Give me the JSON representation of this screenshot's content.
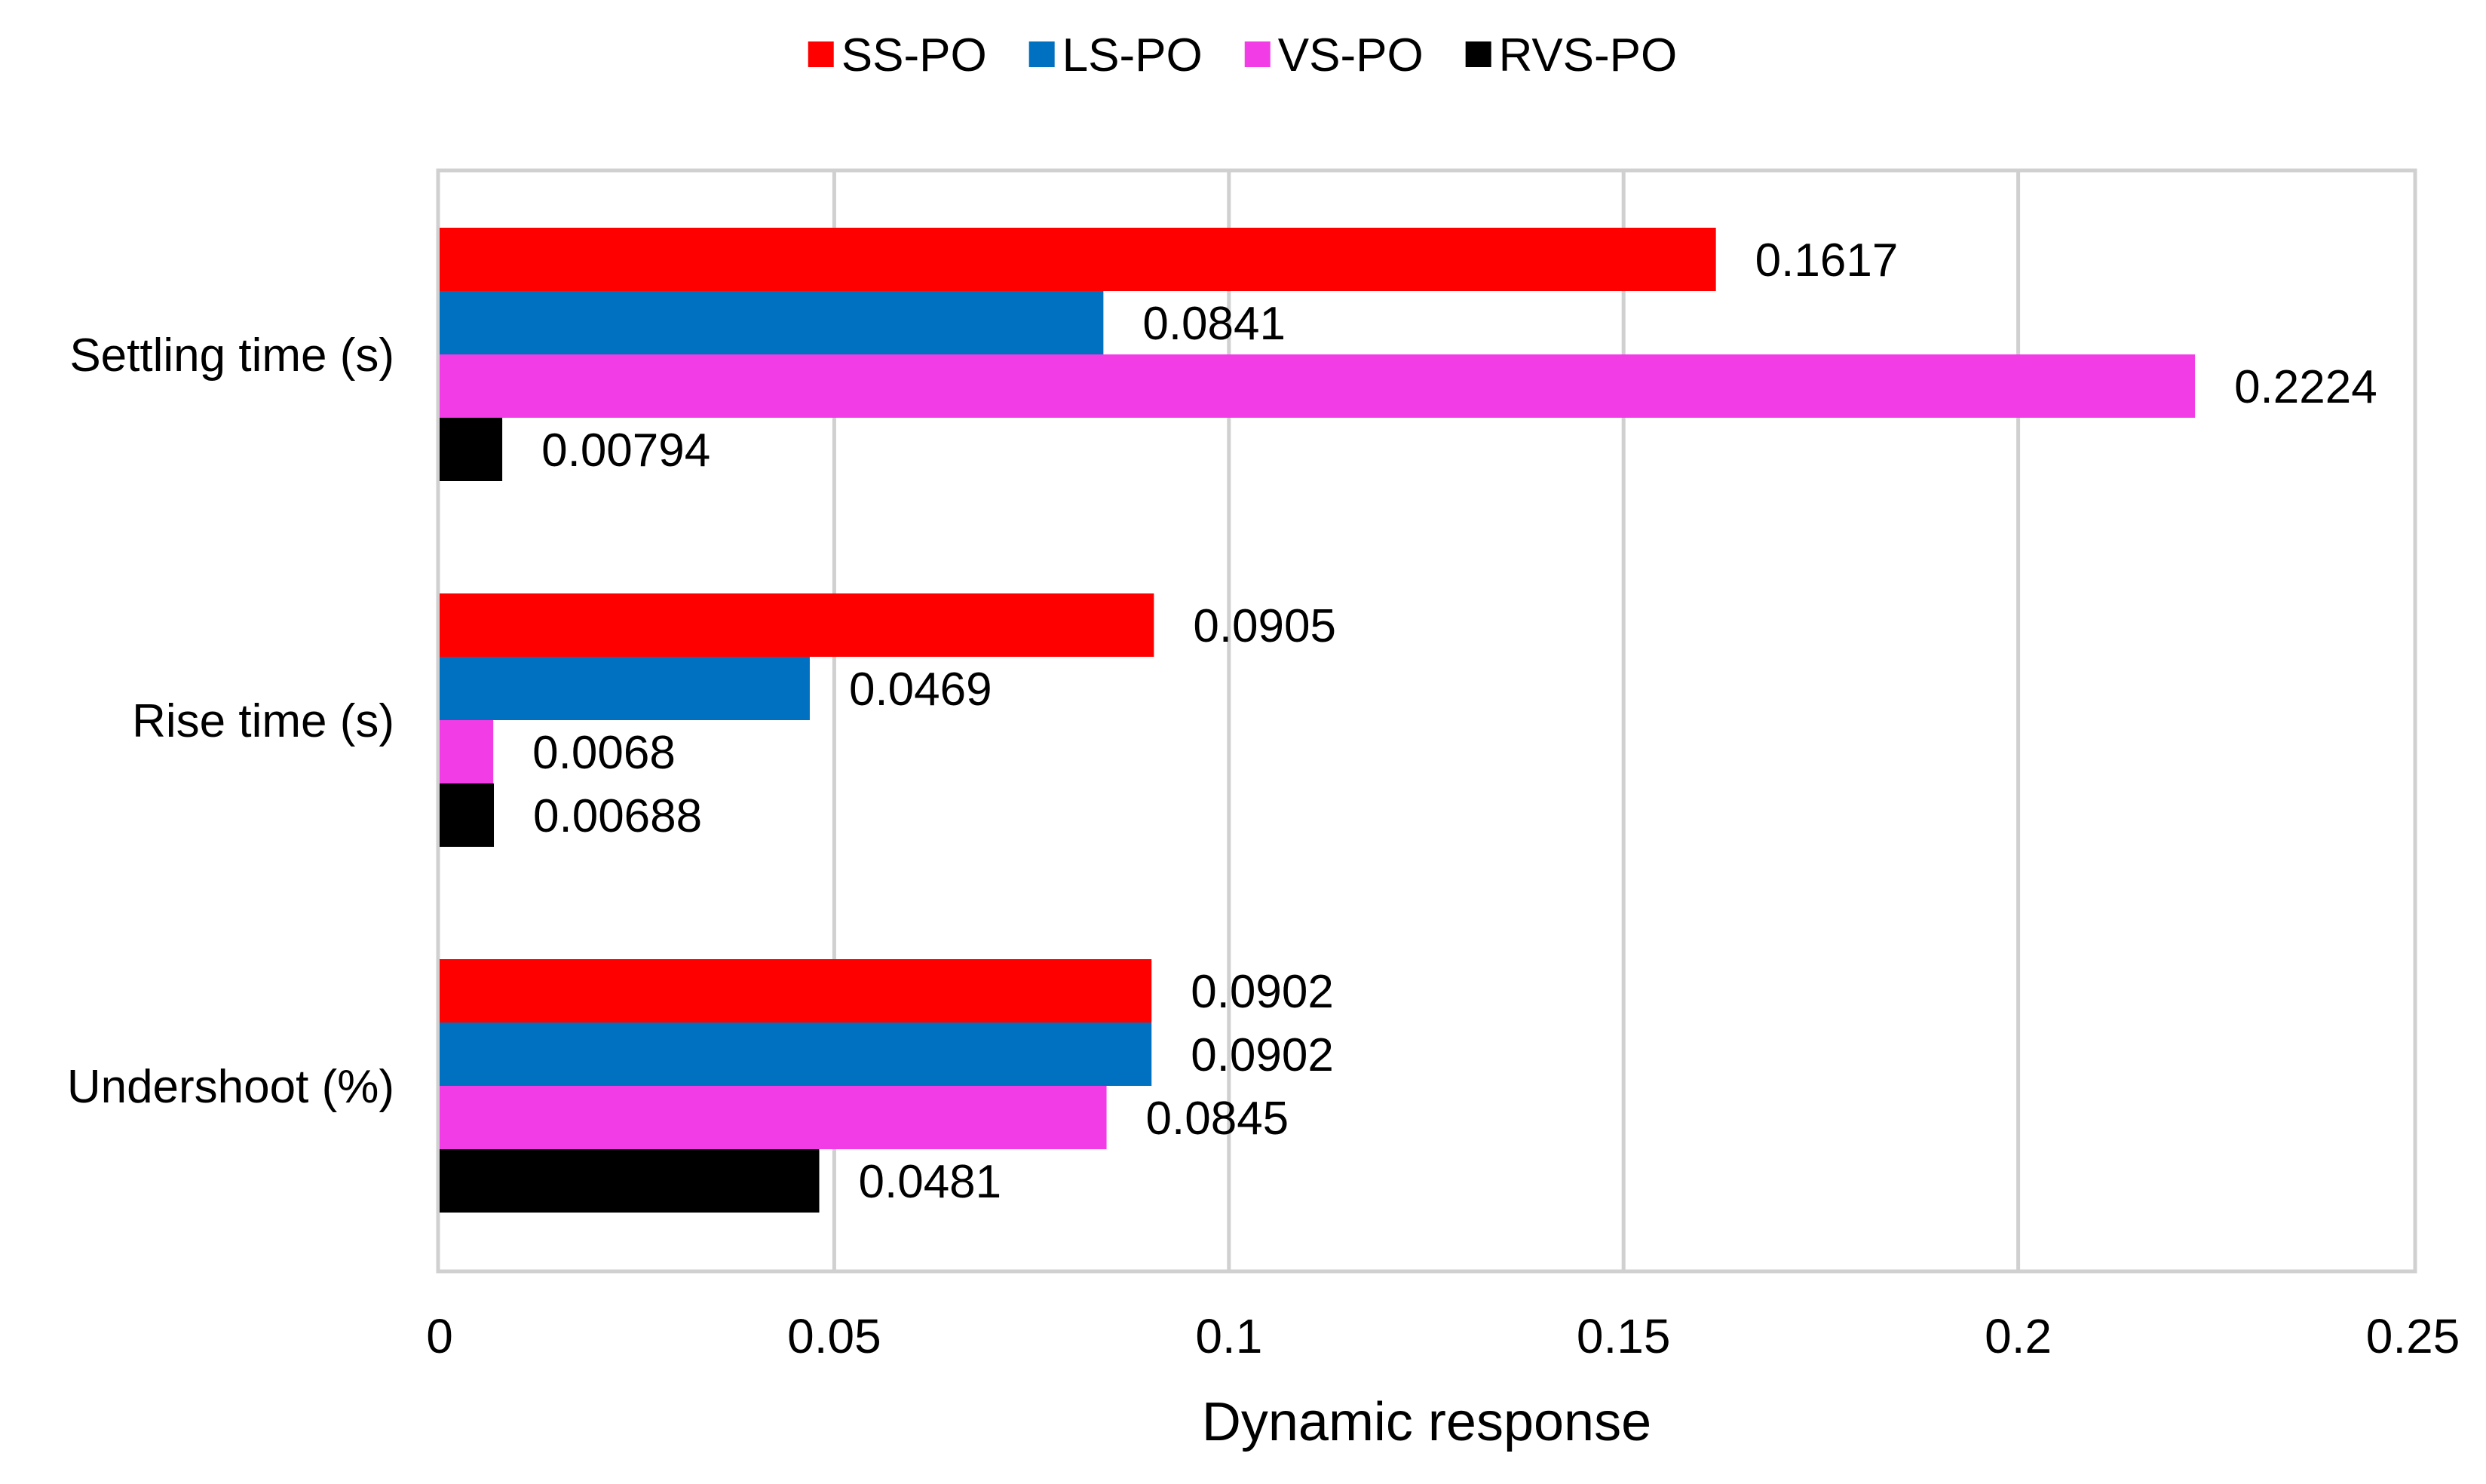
{
  "chart_data": {
    "type": "bar",
    "orientation": "horizontal",
    "title": "",
    "xlabel": "Dynamic response",
    "ylabel": "",
    "xlim": [
      0,
      0.25
    ],
    "x_ticks": [
      0,
      0.05,
      0.1,
      0.15,
      0.2,
      0.25
    ],
    "x_tick_labels": [
      "0",
      "0.05",
      "0.1",
      "0.15",
      "0.2",
      "0.25"
    ],
    "grid": "vertical",
    "legend_position": "top-center",
    "categories": [
      "Settling time (s)",
      "Rise time (s)",
      "Undershoot (%)"
    ],
    "series": [
      {
        "name": "SS-PO",
        "color": "#ff0000",
        "values": [
          0.1617,
          0.0905,
          0.0902
        ],
        "labels": [
          "0.1617",
          "0.0905",
          "0.0902"
        ]
      },
      {
        "name": "LS-PO",
        "color": "#0070c0",
        "values": [
          0.0841,
          0.0469,
          0.0902
        ],
        "labels": [
          "0.0841",
          "0.0469",
          "0.0902"
        ]
      },
      {
        "name": "VS-PO",
        "color": "#f23ce6",
        "values": [
          0.2224,
          0.0068,
          0.0845
        ],
        "labels": [
          "0.2224",
          "0.0068",
          "0.0845"
        ]
      },
      {
        "name": "RVS-PO",
        "color": "#000000",
        "values": [
          0.00794,
          0.00688,
          0.0481
        ],
        "labels": [
          "0.00794",
          "0.00688",
          "0.0481"
        ]
      }
    ]
  }
}
